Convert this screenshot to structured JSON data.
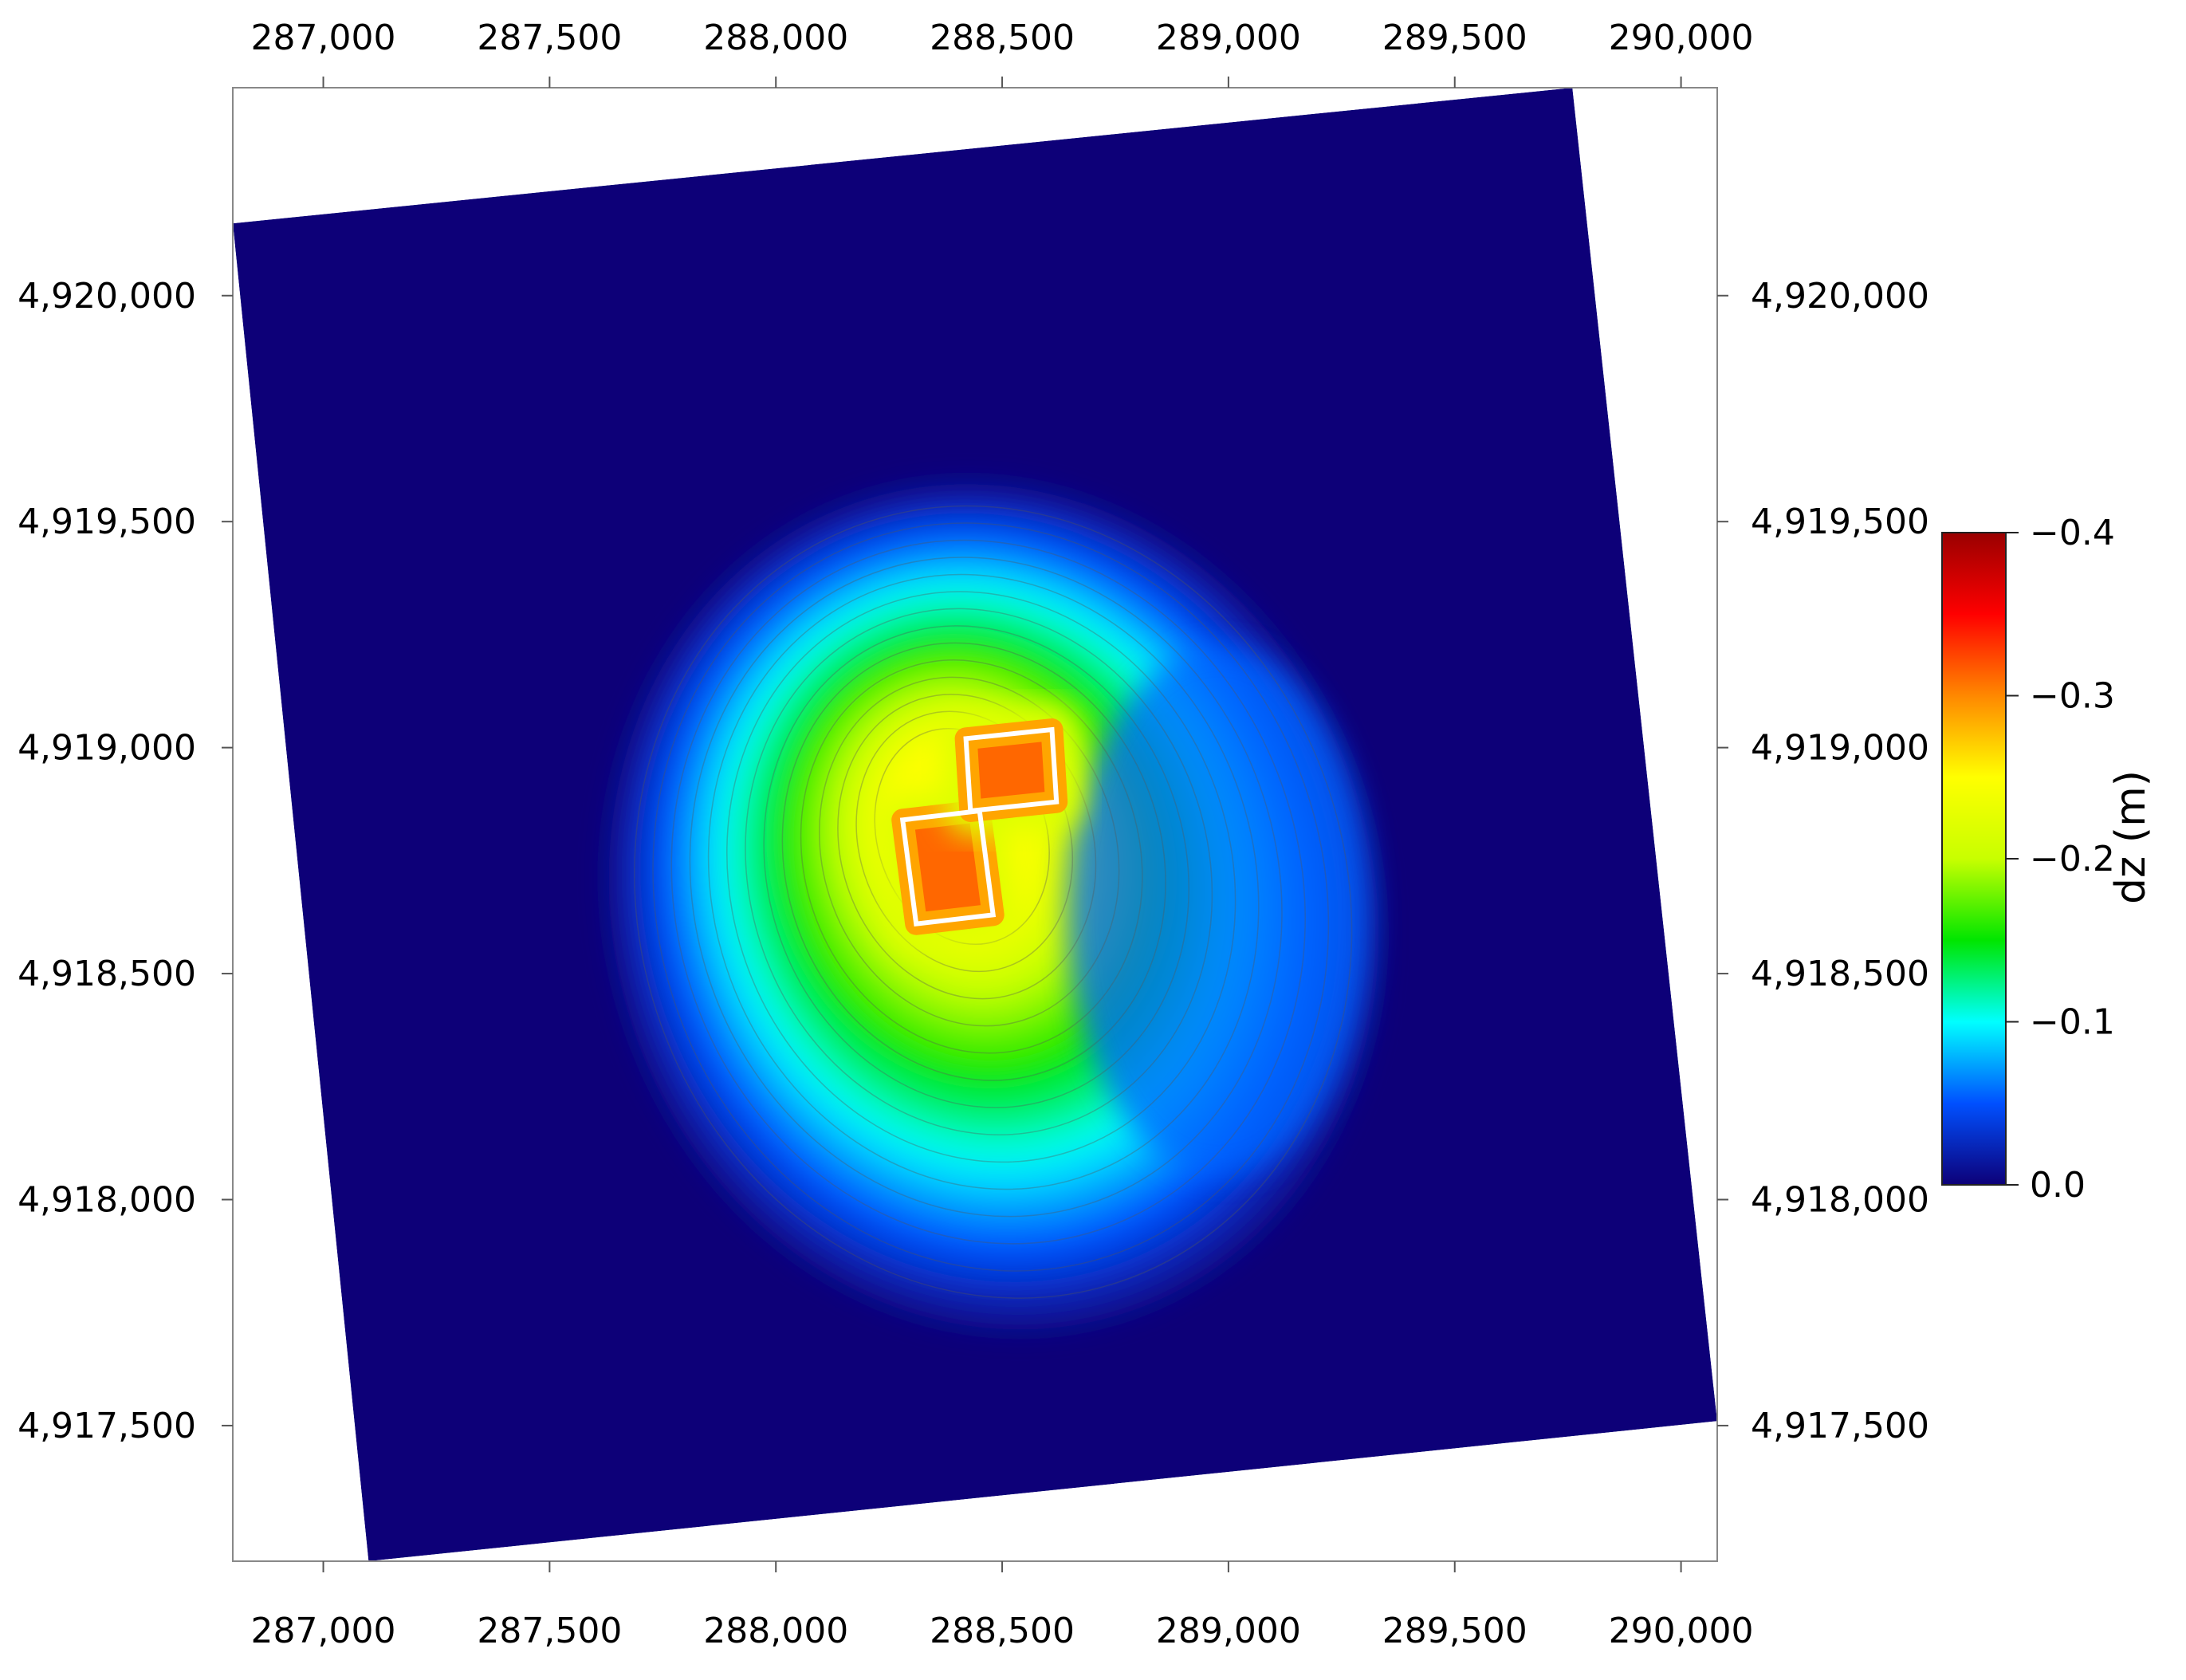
{
  "chart_data": {
    "type": "heatmap",
    "title": "",
    "xlabel": "",
    "ylabel": "",
    "xlim": [
      286800,
      290080
    ],
    "ylim": [
      4917200,
      4920460
    ],
    "x_ticks": [
      287000,
      287500,
      288000,
      288500,
      289000,
      289500,
      290000
    ],
    "x_tick_labels": [
      "287,000",
      "287,500",
      "288,000",
      "288,500",
      "289,000",
      "289,500",
      "290,000"
    ],
    "y_ticks": [
      4917500,
      4918000,
      4918500,
      4919000,
      4919500,
      4920000
    ],
    "y_tick_labels": [
      "4,917,500",
      "4,918,000",
      "4,918,500",
      "4,919,000",
      "4,919,500",
      "4,920,000"
    ],
    "grid": false,
    "colorbar": {
      "label": "dz (m)",
      "range": [
        0.0,
        -0.4
      ],
      "ticks": [
        -0.4,
        -0.3,
        -0.2,
        -0.1,
        0.0
      ],
      "tick_labels": [
        "−0.4",
        "−0.3",
        "−0.2",
        "−0.1",
        "0.0"
      ],
      "colormap": [
        "#0d0078",
        "#0050ff",
        "#00ffff",
        "#00e600",
        "#c8ff00",
        "#ffff00",
        "#ff8800",
        "#ff0000",
        "#990000"
      ]
    },
    "domain_outline": [
      [
        286800,
        4920160
      ],
      [
        289760,
        4920460
      ],
      [
        290080,
        4917510
      ],
      [
        287100,
        4917200
      ]
    ],
    "subsidence_center": [
      288450,
      4918850
    ],
    "max_dz": -0.4,
    "background_dz": 0.0,
    "contour_interval": -0.02,
    "zones": [
      {
        "corners": [
          [
            288280,
            4918840
          ],
          [
            288450,
            4918860
          ],
          [
            288480,
            4918630
          ],
          [
            288310,
            4918610
          ]
        ]
      },
      {
        "corners": [
          [
            288420,
            4919020
          ],
          [
            288610,
            4919040
          ],
          [
            288620,
            4918880
          ],
          [
            288430,
            4918860
          ]
        ]
      }
    ]
  }
}
